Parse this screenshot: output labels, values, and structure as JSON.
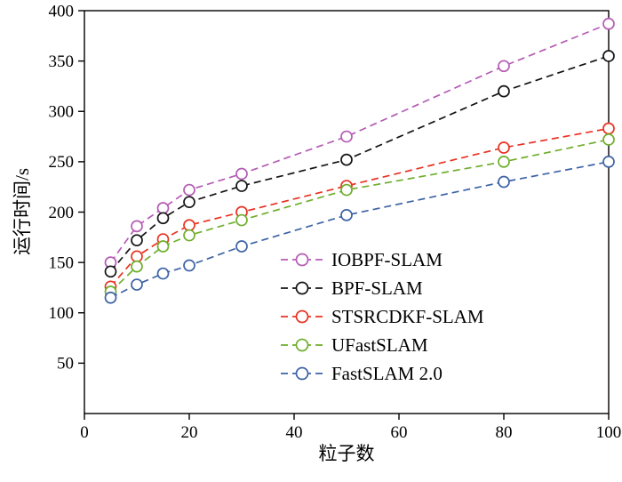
{
  "chart_data": {
    "type": "line",
    "title": "",
    "xlabel": "粒子数",
    "ylabel": "运行时间/s",
    "xlim": [
      0,
      100
    ],
    "ylim": [
      0,
      400
    ],
    "x_ticks": [
      0,
      20,
      40,
      60,
      80,
      100
    ],
    "y_ticks": [
      50,
      100,
      150,
      200,
      250,
      300,
      350,
      400
    ],
    "grid": false,
    "legend_position": "inside-bottom-right",
    "line_style": "dashed",
    "marker": "open-circle",
    "x": [
      5,
      10,
      15,
      20,
      30,
      50,
      80,
      100
    ],
    "series": [
      {
        "name": "IOBPF-SLAM",
        "color": "#b55cb5",
        "values": [
          150,
          186,
          204,
          222,
          238,
          275,
          345,
          387
        ]
      },
      {
        "name": "BPF-SLAM",
        "color": "#141414",
        "values": [
          141,
          172,
          194,
          210,
          226,
          252,
          320,
          355
        ]
      },
      {
        "name": "STSRCDKF-SLAM",
        "color": "#e93223",
        "values": [
          126,
          156,
          173,
          187,
          200,
          226,
          264,
          283
        ]
      },
      {
        "name": "UFastSLAM",
        "color": "#6fae2c",
        "values": [
          121,
          146,
          166,
          177,
          192,
          222,
          250,
          272
        ]
      },
      {
        "name": "FastSLAM 2.0",
        "color": "#3d63a6",
        "values": [
          115,
          128,
          139,
          147,
          166,
          197,
          230,
          250
        ]
      }
    ]
  }
}
